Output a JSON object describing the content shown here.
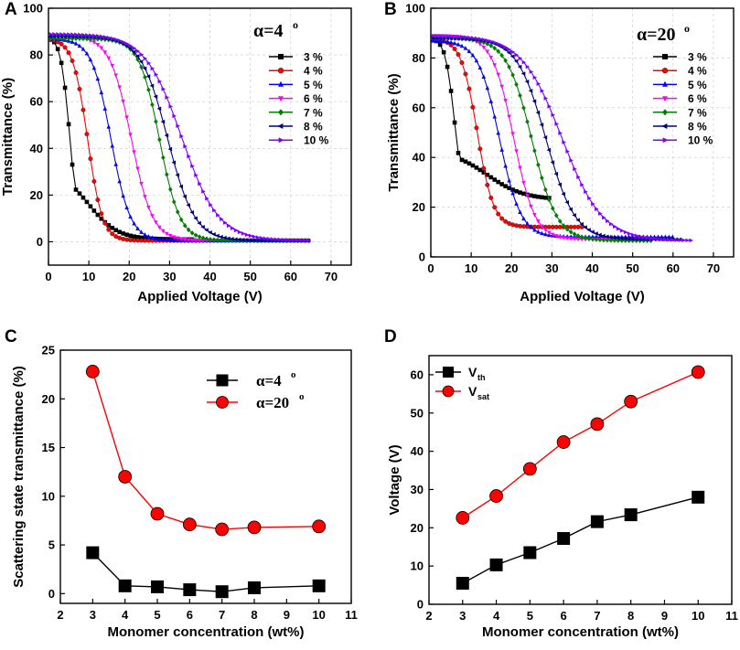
{
  "chart_data": [
    {
      "panel_label": "A",
      "type": "line",
      "annotation": "α=4",
      "annotation_sup": "o",
      "xlabel": "Applied Voltage (V)",
      "ylabel": "Transmittance (%)",
      "xlim": [
        0,
        75
      ],
      "ylim": [
        -10,
        100
      ],
      "xticks": [
        0,
        10,
        20,
        30,
        40,
        50,
        60,
        70
      ],
      "yticks": [
        0,
        20,
        40,
        60,
        80,
        100
      ],
      "grid": true,
      "legend_position": "right",
      "series": [
        {
          "name": "3 %",
          "color": "#000000",
          "marker": "square",
          "v_on": 5.3,
          "t_max": 88,
          "t_min": 1,
          "slope": 0.9,
          "tail_amp": 30,
          "tail_slope": 0.28,
          "tail_center": 10,
          "start": 0.5,
          "end": 36,
          "step": 0.9
        },
        {
          "name": "4 %",
          "color": "#ff0000",
          "marker": "circle",
          "v_on": 9.7,
          "t_max": 87,
          "t_min": 0.5,
          "slope": 0.55,
          "start": 0.5,
          "end": 65,
          "step": 0.9
        },
        {
          "name": "5 %",
          "color": "#0000ff",
          "marker": "triangle-up",
          "v_on": 15.5,
          "t_max": 87,
          "t_min": 0.5,
          "slope": 0.42,
          "start": 0.5,
          "end": 65,
          "step": 0.9
        },
        {
          "name": "6 %",
          "color": "#ff00ff",
          "marker": "triangle-down",
          "v_on": 20.5,
          "t_max": 88,
          "t_min": 0.5,
          "slope": 0.38,
          "start": 0.5,
          "end": 65,
          "step": 0.9
        },
        {
          "name": "7 %",
          "color": "#008000",
          "marker": "diamond",
          "v_on": 27.5,
          "t_max": 87,
          "t_min": 0.5,
          "slope": 0.4,
          "start": 0.5,
          "end": 65,
          "step": 0.9
        },
        {
          "name": "8 %",
          "color": "#000080",
          "marker": "triangle-left",
          "v_on": 29.5,
          "t_max": 88,
          "t_min": 0.5,
          "slope": 0.3,
          "start": 0.5,
          "end": 65,
          "step": 0.9
        },
        {
          "name": "10 %",
          "color": "#8000ff",
          "marker": "triangle-right",
          "v_on": 33.0,
          "t_max": 89,
          "t_min": 0.5,
          "slope": 0.22,
          "start": 0.5,
          "end": 65,
          "step": 0.9
        }
      ]
    },
    {
      "panel_label": "B",
      "type": "line",
      "annotation": "α=20",
      "annotation_sup": "o",
      "xlabel": "Applied Voltage (V)",
      "ylabel": "Transmittance (%)",
      "xlim": [
        0,
        75
      ],
      "ylim": [
        0,
        100
      ],
      "xticks": [
        0,
        10,
        20,
        30,
        40,
        50,
        60,
        70
      ],
      "yticks": [
        0,
        20,
        40,
        60,
        80,
        100
      ],
      "grid": true,
      "legend_position": "right",
      "series": [
        {
          "name": "3 %",
          "color": "#000000",
          "marker": "square",
          "v_on": 5.8,
          "t_max": 88,
          "t_min": 23,
          "slope": 0.9,
          "tail_amp": 20,
          "tail_slope": 0.22,
          "tail_center": 14,
          "start": 0.5,
          "end": 30,
          "step": 0.9
        },
        {
          "name": "4 %",
          "color": "#ff0000",
          "marker": "circle",
          "v_on": 11.5,
          "t_max": 88,
          "t_min": 12,
          "slope": 0.5,
          "start": 0.5,
          "end": 38,
          "step": 0.9
        },
        {
          "name": "5 %",
          "color": "#0000ff",
          "marker": "triangle-up",
          "v_on": 17.0,
          "t_max": 87,
          "t_min": 8,
          "slope": 0.38,
          "start": 0.5,
          "end": 60,
          "step": 0.9
        },
        {
          "name": "6 %",
          "color": "#ff00ff",
          "marker": "triangle-down",
          "v_on": 20.5,
          "t_max": 89,
          "t_min": 7,
          "slope": 0.38,
          "start": 0.5,
          "end": 55,
          "step": 0.9
        },
        {
          "name": "7 %",
          "color": "#008000",
          "marker": "diamond",
          "v_on": 25.0,
          "t_max": 88,
          "t_min": 6.5,
          "slope": 0.32,
          "start": 0.5,
          "end": 55,
          "step": 0.9
        },
        {
          "name": "8 %",
          "color": "#000080",
          "marker": "triangle-left",
          "v_on": 28.5,
          "t_max": 88,
          "t_min": 7,
          "slope": 0.28,
          "start": 0.5,
          "end": 62,
          "step": 0.9
        },
        {
          "name": "10 %",
          "color": "#8000ff",
          "marker": "triangle-right",
          "v_on": 32.5,
          "t_max": 89,
          "t_min": 6.5,
          "slope": 0.2,
          "start": 0.5,
          "end": 65,
          "step": 0.9
        }
      ]
    },
    {
      "panel_label": "C",
      "type": "line",
      "xlabel": "Monomer concentration (wt%)",
      "ylabel": "Scattering state transmittance (%)",
      "xlim": [
        2,
        11
      ],
      "ylim": [
        -1,
        25
      ],
      "xticks": [
        2,
        3,
        4,
        5,
        6,
        7,
        8,
        9,
        10,
        11
      ],
      "yticks": [
        0,
        5,
        10,
        15,
        20,
        25
      ],
      "grid": false,
      "legend_position": "top-right",
      "series": [
        {
          "name": "α=4",
          "name_sup": "o",
          "color": "#000000",
          "marker": "square",
          "x": [
            3,
            4,
            5,
            6,
            7,
            8,
            10
          ],
          "y": [
            4.2,
            0.8,
            0.7,
            0.4,
            0.2,
            0.6,
            0.8
          ]
        },
        {
          "name": "α=20",
          "name_sup": "o",
          "color": "#ff0000",
          "marker": "circle",
          "x": [
            3,
            4,
            5,
            6,
            7,
            8,
            10
          ],
          "y": [
            22.8,
            12.0,
            8.2,
            7.1,
            6.6,
            6.8,
            6.9
          ]
        }
      ]
    },
    {
      "panel_label": "D",
      "type": "line",
      "xlabel": "Monomer concentration (wt%)",
      "ylabel": "Voltage (V)",
      "xlim": [
        2,
        11
      ],
      "ylim": [
        0,
        65
      ],
      "xticks": [
        2,
        3,
        4,
        5,
        6,
        7,
        8,
        9,
        10,
        11
      ],
      "yticks": [
        0,
        10,
        20,
        30,
        40,
        50,
        60
      ],
      "grid": false,
      "legend_position": "top-left",
      "series": [
        {
          "name": "V",
          "name_sub": "th",
          "color": "#000000",
          "marker": "square",
          "x": [
            3,
            4,
            5,
            6,
            7,
            8,
            10
          ],
          "y": [
            5.5,
            10.3,
            13.5,
            17.2,
            21.6,
            23.4,
            28.0
          ]
        },
        {
          "name": "V",
          "name_sub": "sat",
          "color": "#ff0000",
          "marker": "circle",
          "x": [
            3,
            4,
            5,
            6,
            7,
            8,
            10
          ],
          "y": [
            22.6,
            28.3,
            35.4,
            42.4,
            47.1,
            53.0,
            60.7
          ]
        }
      ]
    }
  ]
}
